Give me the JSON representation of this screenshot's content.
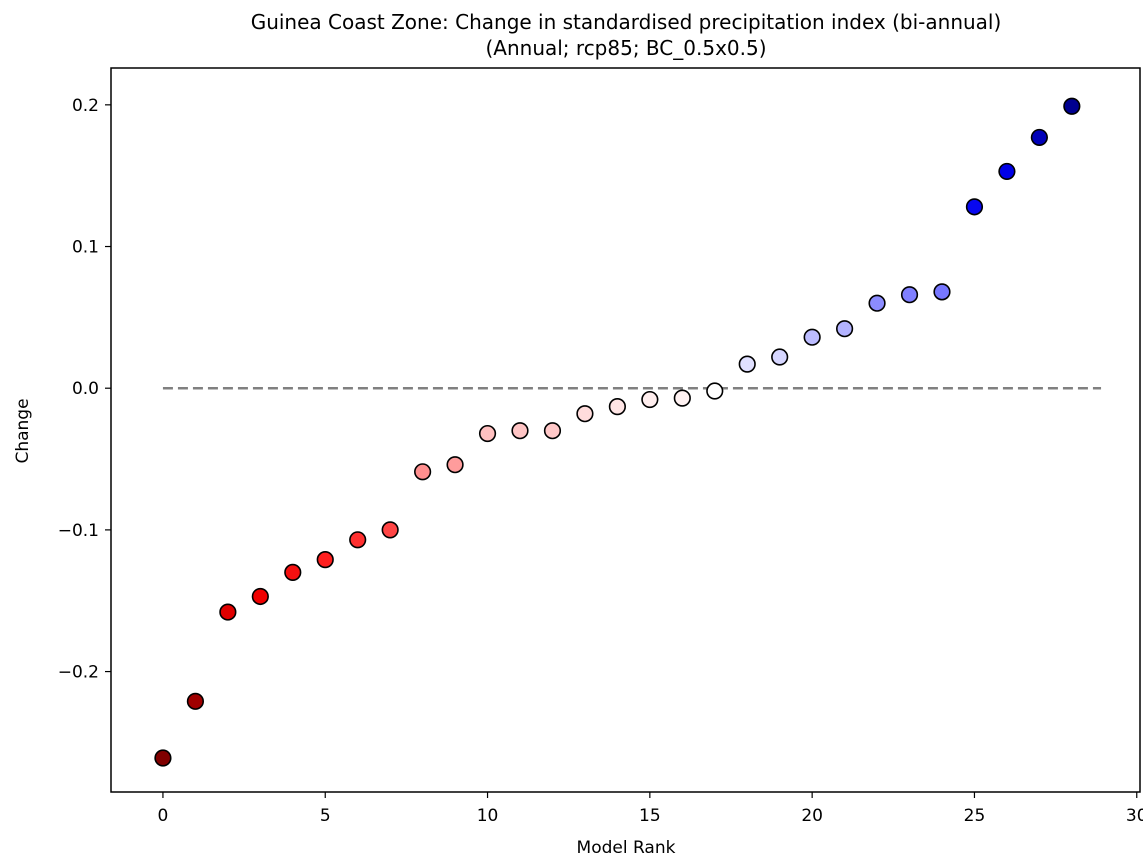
{
  "chart_data": {
    "type": "scatter",
    "title": "Guinea Coast Zone: Change in standardised precipitation index (bi-annual)",
    "subtitle": "(Annual; rcp85; BC_0.5x0.5)",
    "xlabel": "Model Rank",
    "ylabel": "Change",
    "xlim": [
      -1.6,
      30.1
    ],
    "ylim": [
      -0.285,
      0.226
    ],
    "xticks": [
      0,
      5,
      10,
      15,
      20,
      25,
      30
    ],
    "yticks": [
      -0.2,
      -0.1,
      0.0,
      0.1,
      0.2
    ],
    "xtick_labels": [
      "0",
      "5",
      "10",
      "15",
      "20",
      "25",
      "30"
    ],
    "ytick_labels": [
      "−0.2",
      "−0.1",
      "0.0",
      "0.1",
      "0.2"
    ],
    "reference_line": {
      "y": 0.0,
      "x_range": [
        0,
        28.9
      ],
      "style": "dashed",
      "color": "#808080"
    },
    "grid": false,
    "legend": "none",
    "x": [
      0,
      1,
      2,
      3,
      4,
      5,
      6,
      7,
      8,
      9,
      10,
      11,
      12,
      13,
      14,
      15,
      16,
      17,
      18,
      19,
      20,
      21,
      22,
      23,
      24,
      25,
      26,
      27,
      28
    ],
    "values": [
      -0.261,
      -0.221,
      -0.158,
      -0.147,
      -0.13,
      -0.121,
      -0.107,
      -0.1,
      -0.059,
      -0.054,
      -0.032,
      -0.03,
      -0.03,
      -0.018,
      -0.013,
      -0.008,
      -0.007,
      -0.002,
      0.017,
      0.022,
      0.036,
      0.042,
      0.06,
      0.066,
      0.068,
      0.128,
      0.153,
      0.177,
      0.199
    ],
    "point_colors": [
      "#800000",
      "#a00000",
      "#e00000",
      "#f00000",
      "#f51010",
      "#ff1f1f",
      "#ff3030",
      "#ff4545",
      "#ff8f8f",
      "#ff9c9c",
      "#ffc0c0",
      "#ffc5c5",
      "#ffc8c8",
      "#ffdcdc",
      "#ffe5e5",
      "#ffeeee",
      "#fff2f2",
      "#ffffff",
      "#e0e0ff",
      "#d6d6ff",
      "#bcbcff",
      "#b3b3ff",
      "#8c8cff",
      "#7f7fff",
      "#7777ff",
      "#0808f0",
      "#0000e6",
      "#0000b8",
      "#000090"
    ],
    "marker_edge_color": "#000000"
  }
}
